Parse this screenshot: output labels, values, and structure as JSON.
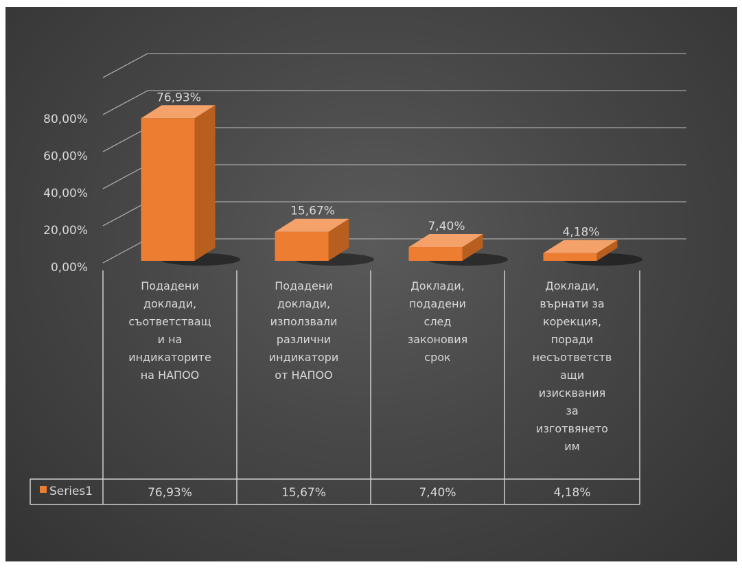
{
  "chart_data": {
    "type": "bar",
    "style": "3d-column-with-data-table",
    "categories": [
      [
        "Подадени",
        "доклади,",
        "съответстващ",
        "и на",
        "индикаторите",
        "на НАПОО"
      ],
      [
        "Подадени",
        "доклади,",
        "използвали",
        "различни",
        "индикатори",
        "от НАПОО"
      ],
      [
        "Доклади,",
        "подадени",
        "след",
        "законовия",
        "срок"
      ],
      [
        "Доклади,",
        "върнати за",
        "корекция,",
        "поради",
        "несъответств",
        "ащи",
        "изисквания",
        "за",
        "изготвянето",
        "им"
      ]
    ],
    "series": [
      {
        "name": "Series1",
        "values": [
          76.93,
          15.67,
          7.4,
          4.18
        ],
        "labels": [
          "76,93%",
          "15,67%",
          "7,40%",
          "4,18%"
        ],
        "color": "#ed7d31"
      }
    ],
    "y_ticks": [
      0,
      20,
      40,
      60,
      80
    ],
    "y_tick_labels": [
      "0,00%",
      "20,00%",
      "40,00%",
      "60,00%",
      "80,00%"
    ],
    "ylim": [
      0,
      100
    ],
    "grid": true,
    "legend": "in-data-table",
    "data_table": true,
    "colors": {
      "background": "#474747",
      "bar_front": "#ed7d31",
      "bar_top": "#f4a26a",
      "bar_side": "#b85f1f",
      "gridline": "#a6a6a6",
      "text": "#d9d9d9"
    }
  }
}
